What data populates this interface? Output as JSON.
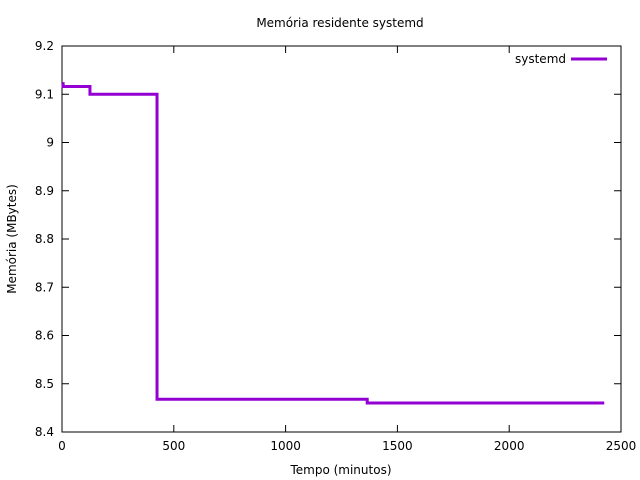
{
  "chart_data": {
    "type": "line",
    "title": "Memória residente systemd",
    "xlabel": "Tempo (minutos)",
    "ylabel": "Memória (MBytes)",
    "xlim": [
      0,
      2500
    ],
    "ylim": [
      8.4,
      9.2
    ],
    "x_ticks": [
      0,
      500,
      1000,
      1500,
      2000,
      2500
    ],
    "x_tick_labels": [
      "0",
      "500",
      "1000",
      "1500",
      "2000",
      "2500"
    ],
    "y_ticks": [
      8.4,
      8.5,
      8.6,
      8.7,
      8.8,
      8.9,
      9.0,
      9.1,
      9.2
    ],
    "y_tick_labels": [
      "8.4",
      "8.5",
      "8.6",
      "8.7",
      "8.8",
      "8.9",
      "9",
      "9.1",
      "9.2"
    ],
    "grid": false,
    "legend_position": "top-right",
    "series": [
      {
        "name": "systemd",
        "color": "#9400d3",
        "step": true,
        "x": [
          0,
          5,
          125,
          420,
          425,
          1365,
          2425
        ],
        "y": [
          9.122,
          9.116,
          9.1,
          9.1,
          8.468,
          8.46,
          8.46
        ]
      }
    ]
  }
}
